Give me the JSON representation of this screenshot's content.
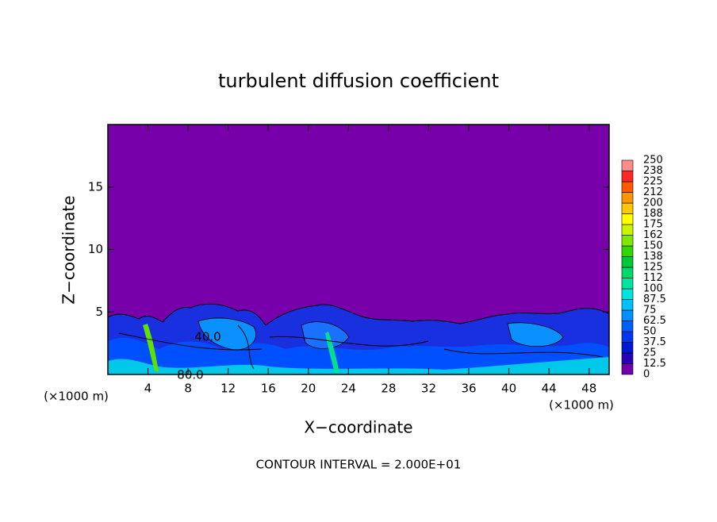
{
  "chart_data": {
    "type": "contour",
    "title": "turbulent diffusion coefficient",
    "x_label": "X−coordinate",
    "y_label": "Z−coordinate",
    "x_unit": "(×1000 m)",
    "y_unit": "(×1000 m)",
    "xlim": [
      0,
      50
    ],
    "ylim": [
      0,
      20
    ],
    "xticks": [
      4,
      8,
      12,
      16,
      20,
      24,
      28,
      32,
      36,
      40,
      44,
      48
    ],
    "yticks": [
      5,
      10,
      15
    ],
    "annotation": "CONTOUR INTERVAL = 2.000E+01",
    "contour_labels": [
      "40.0",
      "80.0"
    ],
    "colorbar": {
      "levels": [
        0,
        12.5,
        25,
        37.5,
        50,
        62.5,
        75,
        87.5,
        100,
        {
          "value": 112.5,
          "label": "112"
        },
        125,
        {
          "value": 137.5,
          "label": "138"
        },
        150,
        {
          "value": 162.5,
          "label": "162"
        },
        175,
        {
          "value": 187.5,
          "label": "188"
        },
        200,
        {
          "value": 212.5,
          "label": "212"
        },
        225,
        {
          "value": 237.5,
          "label": "238"
        },
        250
      ],
      "colors": [
        "#7300aa",
        "#2a00b8",
        "#0018d4",
        "#0038f0",
        "#0060ff",
        "#0090ff",
        "#00c0ff",
        "#00e6dc",
        "#00e6a0",
        "#00d86a",
        "#00c838",
        "#30d800",
        "#80e800",
        "#c8f400",
        "#ffff00",
        "#ffc800",
        "#ff9600",
        "#ff5a00",
        "#ff2828",
        "#ff8c8c"
      ]
    }
  }
}
